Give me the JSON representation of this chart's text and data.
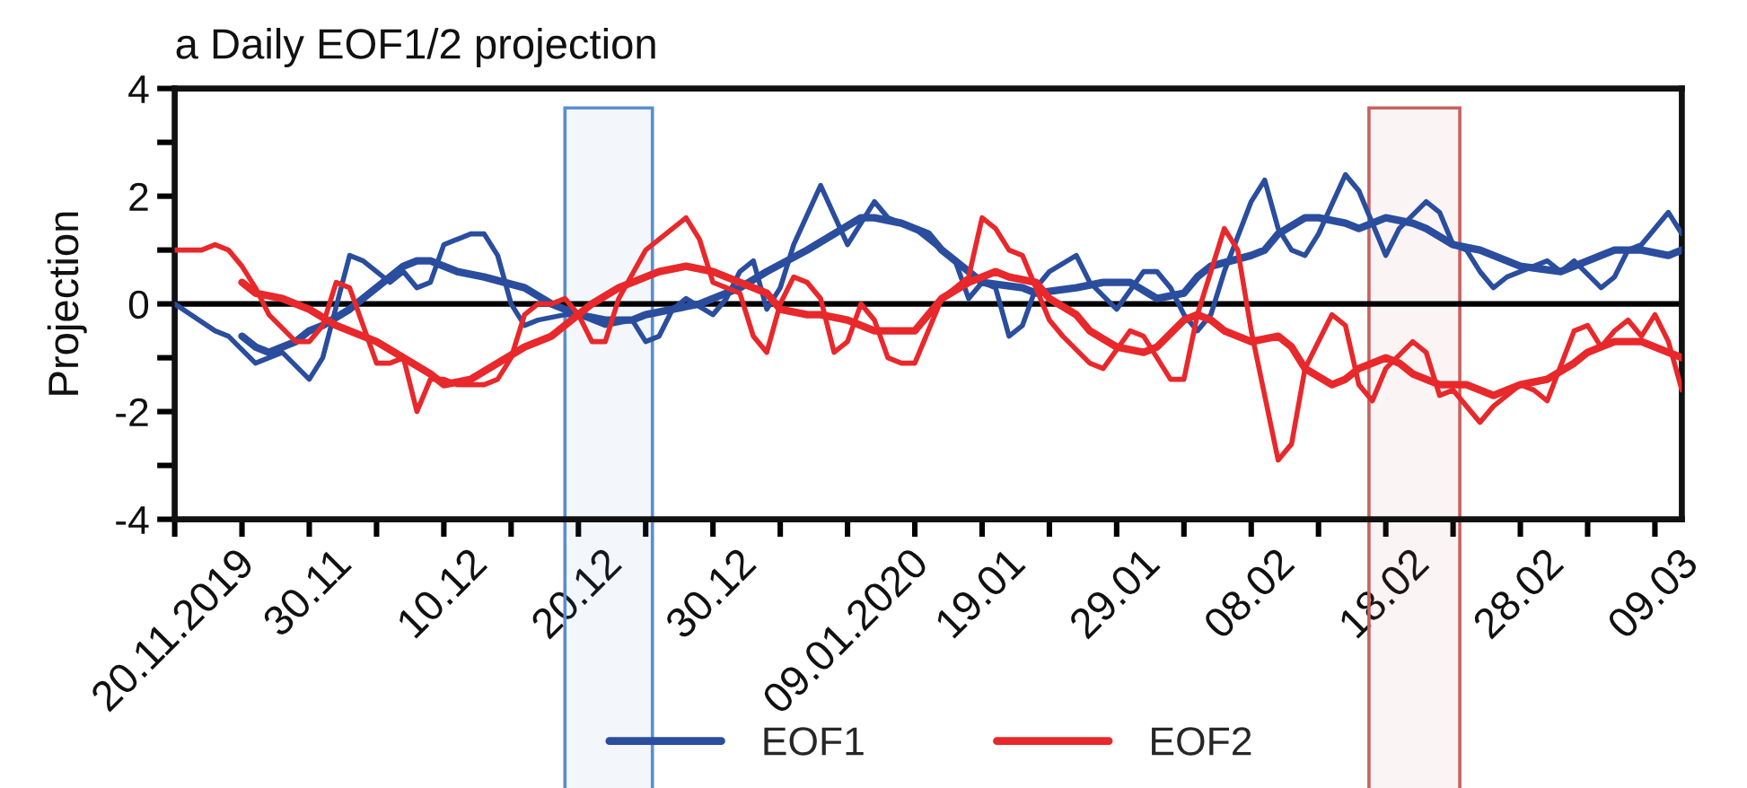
{
  "chart_data": {
    "type": "line",
    "title": "a Daily EOF1/2 projection",
    "ylabel": "Projection",
    "xlim": [
      "2019-11-20",
      "2020-03-11"
    ],
    "ylim": [
      -4,
      4
    ],
    "xticks": [
      {
        "value": "2019-11-20",
        "label": "20.11.2019"
      },
      {
        "value": "2019-11-25",
        "label": null
      },
      {
        "value": "2019-11-30",
        "label": "30.11"
      },
      {
        "value": "2019-12-05",
        "label": null
      },
      {
        "value": "2019-12-10",
        "label": "10.12"
      },
      {
        "value": "2019-12-15",
        "label": null
      },
      {
        "value": "2019-12-20",
        "label": "20.12"
      },
      {
        "value": "2019-12-25",
        "label": null
      },
      {
        "value": "2019-12-30",
        "label": "30.12"
      },
      {
        "value": "2020-01-04",
        "label": null
      },
      {
        "value": "2020-01-09",
        "label": "09.01.2020"
      },
      {
        "value": "2020-01-14",
        "label": null
      },
      {
        "value": "2020-01-19",
        "label": "19.01"
      },
      {
        "value": "2020-01-24",
        "label": null
      },
      {
        "value": "2020-01-29",
        "label": "29.01"
      },
      {
        "value": "2020-02-03",
        "label": null
      },
      {
        "value": "2020-02-08",
        "label": "08.02"
      },
      {
        "value": "2020-02-13",
        "label": null
      },
      {
        "value": "2020-02-18",
        "label": "18.02"
      },
      {
        "value": "2020-02-23",
        "label": null
      },
      {
        "value": "2020-02-28",
        "label": "28.02"
      },
      {
        "value": "2020-03-04",
        "label": null
      },
      {
        "value": "2020-03-09",
        "label": "09.03"
      }
    ],
    "yticks": [
      -4,
      {
        "value": -3,
        "label": null
      },
      -2,
      {
        "value": -1,
        "label": null
      },
      0,
      {
        "value": 1,
        "label": null
      },
      2,
      {
        "value": 3,
        "label": null
      },
      4
    ],
    "legend": "bottom",
    "ref_lines": [
      {
        "axis": "y",
        "value": 0,
        "color": "#000000"
      }
    ],
    "bands": [
      {
        "axis": "x",
        "from": "2019-12-19",
        "to": "2019-12-25T12:00",
        "color": "#5a8fd0"
      },
      {
        "axis": "x",
        "from": "2020-02-16T18:00",
        "to": "2020-02-23T12:00",
        "color": "#c9605f"
      }
    ],
    "series": [
      {
        "color": "#2a4d9e",
        "x": [
          "2019-11-20",
          "2019-11-23",
          "2019-11-24",
          "2019-11-26",
          "2019-11-27",
          "2019-11-28",
          "2019-11-30",
          "2019-12-01",
          "2019-12-03",
          "2019-12-04",
          "2019-12-06",
          "2019-12-07",
          "2019-12-08",
          "2019-12-09",
          "2019-12-10",
          "2019-12-12",
          "2019-12-13",
          "2019-12-14",
          "2019-12-15",
          "2019-12-16",
          "2019-12-17",
          "2019-12-19",
          "2019-12-20",
          "2019-12-22",
          "2019-12-24",
          "2019-12-25",
          "2019-12-26",
          "2019-12-27",
          "2019-12-28",
          "2019-12-30",
          "2019-12-31",
          "2020-01-01",
          "2020-01-02",
          "2020-01-03",
          "2020-01-04",
          "2020-01-05",
          "2020-01-07",
          "2020-01-09",
          "2020-01-11",
          "2020-01-12",
          "2020-01-14",
          "2020-01-15",
          "2020-01-17",
          "2020-01-18",
          "2020-01-19",
          "2020-01-20",
          "2020-01-21",
          "2020-01-22",
          "2020-01-23",
          "2020-01-24",
          "2020-01-26",
          "2020-01-27",
          "2020-01-29",
          "2020-01-31",
          "2020-02-01",
          "2020-02-02",
          "2020-02-03",
          "2020-02-04",
          "2020-02-05",
          "2020-02-06",
          "2020-02-08",
          "2020-02-09",
          "2020-02-10",
          "2020-02-11",
          "2020-02-12",
          "2020-02-13",
          "2020-02-15",
          "2020-02-16",
          "2020-02-17",
          "2020-02-18",
          "2020-02-19",
          "2020-02-21",
          "2020-02-22",
          "2020-02-23",
          "2020-02-24",
          "2020-02-25",
          "2020-02-26",
          "2020-02-27",
          "2020-02-29",
          "2020-03-01",
          "2020-03-02",
          "2020-03-03",
          "2020-03-05",
          "2020-03-06",
          "2020-03-07",
          "2020-03-08",
          "2020-03-09",
          "2020-03-10",
          "2020-03-11"
        ],
        "values": [
          0.0,
          -0.5,
          -0.6,
          -1.1,
          -1.0,
          -0.9,
          -1.4,
          -1.0,
          0.9,
          0.8,
          0.4,
          0.6,
          0.3,
          0.4,
          1.1,
          1.3,
          1.3,
          0.9,
          0.0,
          -0.4,
          -0.3,
          -0.2,
          -0.2,
          -0.4,
          -0.3,
          -0.7,
          -0.6,
          -0.1,
          0.1,
          -0.2,
          0.1,
          0.6,
          0.8,
          -0.1,
          0.3,
          1.1,
          2.2,
          1.1,
          1.9,
          1.6,
          1.4,
          1.2,
          0.8,
          0.1,
          0.4,
          0.3,
          -0.6,
          -0.4,
          0.3,
          0.6,
          0.9,
          0.4,
          -0.1,
          0.6,
          0.6,
          0.3,
          -0.2,
          -0.5,
          -0.2,
          0.6,
          1.9,
          2.3,
          1.4,
          1.0,
          0.9,
          1.3,
          2.4,
          2.1,
          1.5,
          0.9,
          1.4,
          1.9,
          1.7,
          1.1,
          1.0,
          0.6,
          0.3,
          0.5,
          0.7,
          0.8,
          0.6,
          0.8,
          0.3,
          0.5,
          1.0,
          1.1,
          1.4,
          1.7,
          1.3
        ]
      },
      {
        "name": "EOF1",
        "color": "#2a4d9e",
        "x": [
          "2019-11-25",
          "2019-11-26",
          "2019-11-27",
          "2019-11-29",
          "2019-11-30",
          "2019-12-01",
          "2019-12-03",
          "2019-12-05",
          "2019-12-07",
          "2019-12-08",
          "2019-12-09",
          "2019-12-11",
          "2019-12-13",
          "2019-12-16",
          "2019-12-18",
          "2019-12-20",
          "2019-12-22",
          "2019-12-24",
          "2019-12-25",
          "2019-12-27",
          "2019-12-29",
          "2020-01-01",
          "2020-01-03",
          "2020-01-06",
          "2020-01-08",
          "2020-01-10",
          "2020-01-11",
          "2020-01-13",
          "2020-01-15",
          "2020-01-16",
          "2020-01-18",
          "2020-01-19",
          "2020-01-22",
          "2020-01-23",
          "2020-01-26",
          "2020-01-28",
          "2020-01-30",
          "2020-02-01",
          "2020-02-03",
          "2020-02-04",
          "2020-02-05",
          "2020-02-08",
          "2020-02-09",
          "2020-02-10",
          "2020-02-12",
          "2020-02-13",
          "2020-02-15",
          "2020-02-16",
          "2020-02-18",
          "2020-02-20",
          "2020-02-21",
          "2020-02-23",
          "2020-02-25",
          "2020-02-27",
          "2020-02-28",
          "2020-03-02",
          "2020-03-04",
          "2020-03-06",
          "2020-03-08",
          "2020-03-10",
          "2020-03-11"
        ],
        "values": [
          -0.6,
          -0.8,
          -0.9,
          -0.7,
          -0.5,
          -0.4,
          -0.1,
          0.3,
          0.7,
          0.8,
          0.8,
          0.6,
          0.5,
          0.3,
          0.0,
          -0.2,
          -0.3,
          -0.3,
          -0.2,
          -0.1,
          0.0,
          0.3,
          0.6,
          1.0,
          1.3,
          1.6,
          1.6,
          1.5,
          1.3,
          1.0,
          0.6,
          0.4,
          0.3,
          0.2,
          0.3,
          0.4,
          0.4,
          0.1,
          0.2,
          0.5,
          0.7,
          0.9,
          1.0,
          1.3,
          1.6,
          1.6,
          1.5,
          1.4,
          1.6,
          1.5,
          1.4,
          1.1,
          1.0,
          0.8,
          0.7,
          0.6,
          0.8,
          1.0,
          1.0,
          0.9,
          1.0
        ]
      },
      {
        "color": "#e8282b",
        "x": [
          "2019-11-20",
          "2019-11-21",
          "2019-11-22",
          "2019-11-23",
          "2019-11-24",
          "2019-11-25",
          "2019-11-26",
          "2019-11-27",
          "2019-11-29",
          "2019-11-30",
          "2019-12-01",
          "2019-12-02",
          "2019-12-03",
          "2019-12-04",
          "2019-12-05",
          "2019-12-06",
          "2019-12-07",
          "2019-12-08",
          "2019-12-09",
          "2019-12-10",
          "2019-12-11",
          "2019-12-13",
          "2019-12-14",
          "2019-12-15",
          "2019-12-16",
          "2019-12-17",
          "2019-12-18",
          "2019-12-19",
          "2019-12-20",
          "2019-12-21",
          "2019-12-22",
          "2019-12-23",
          "2019-12-25",
          "2019-12-26",
          "2019-12-27",
          "2019-12-28",
          "2019-12-29",
          "2019-12-30",
          "2020-01-01",
          "2020-01-02",
          "2020-01-03",
          "2020-01-04",
          "2020-01-05",
          "2020-01-06",
          "2020-01-07",
          "2020-01-08",
          "2020-01-09",
          "2020-01-10",
          "2020-01-11",
          "2020-01-12",
          "2020-01-13",
          "2020-01-14",
          "2020-01-16",
          "2020-01-18",
          "2020-01-19",
          "2020-01-20",
          "2020-01-21",
          "2020-01-22",
          "2020-01-23",
          "2020-01-24",
          "2020-01-25",
          "2020-01-27",
          "2020-01-28",
          "2020-01-30",
          "2020-01-31",
          "2020-02-02",
          "2020-02-03",
          "2020-02-04",
          "2020-02-05",
          "2020-02-06",
          "2020-02-07",
          "2020-02-08",
          "2020-02-10",
          "2020-02-11",
          "2020-02-12",
          "2020-02-14",
          "2020-02-15",
          "2020-02-16",
          "2020-02-17",
          "2020-02-18",
          "2020-02-20",
          "2020-02-21",
          "2020-02-22",
          "2020-02-23",
          "2020-02-25",
          "2020-02-26",
          "2020-02-28",
          "2020-02-29",
          "2020-03-01",
          "2020-03-03",
          "2020-03-04",
          "2020-03-05",
          "2020-03-06",
          "2020-03-07",
          "2020-03-08",
          "2020-03-09",
          "2020-03-10",
          "2020-03-11"
        ],
        "values": [
          1.0,
          1.0,
          1.0,
          1.1,
          1.0,
          0.7,
          0.3,
          -0.2,
          -0.7,
          -0.7,
          -0.4,
          0.4,
          0.3,
          -0.4,
          -1.1,
          -1.1,
          -1.0,
          -2.0,
          -1.4,
          -1.4,
          -1.5,
          -1.5,
          -1.4,
          -1.0,
          -0.2,
          0.0,
          0.0,
          0.1,
          -0.2,
          -0.7,
          -0.7,
          0.1,
          1.0,
          1.2,
          1.4,
          1.6,
          1.2,
          0.4,
          0.2,
          -0.6,
          -0.9,
          0.0,
          0.5,
          0.4,
          0.1,
          -0.9,
          -0.7,
          0.0,
          -0.3,
          -1.0,
          -1.1,
          -1.1,
          0.1,
          0.5,
          1.6,
          1.4,
          1.0,
          0.9,
          0.3,
          -0.3,
          -0.6,
          -1.1,
          -1.2,
          -0.5,
          -0.6,
          -1.4,
          -1.4,
          -0.2,
          0.6,
          1.4,
          1.0,
          -0.5,
          -2.9,
          -2.6,
          -1.2,
          -0.2,
          -0.4,
          -1.5,
          -1.8,
          -1.2,
          -0.7,
          -0.9,
          -1.7,
          -1.6,
          -2.2,
          -1.9,
          -1.5,
          -1.6,
          -1.8,
          -0.5,
          -0.4,
          -0.8,
          -0.5,
          -0.3,
          -0.6,
          -0.2,
          -0.7,
          -1.6
        ]
      },
      {
        "name": "EOF2",
        "color": "#e8282b",
        "x": [
          "2019-11-25",
          "2019-11-26",
          "2019-11-28",
          "2019-11-30",
          "2019-12-02",
          "2019-12-03",
          "2019-12-05",
          "2019-12-07",
          "2019-12-09",
          "2019-12-10",
          "2019-12-12",
          "2019-12-14",
          "2019-12-16",
          "2019-12-18",
          "2019-12-19",
          "2019-12-21",
          "2019-12-23",
          "2019-12-25",
          "2019-12-26",
          "2019-12-28",
          "2019-12-30",
          "2020-01-01",
          "2020-01-03",
          "2020-01-04",
          "2020-01-06",
          "2020-01-07",
          "2020-01-09",
          "2020-01-11",
          "2020-01-12",
          "2020-01-14",
          "2020-01-15",
          "2020-01-16",
          "2020-01-18",
          "2020-01-20",
          "2020-01-21",
          "2020-01-23",
          "2020-01-24",
          "2020-01-26",
          "2020-01-27",
          "2020-01-29",
          "2020-01-31",
          "2020-02-01",
          "2020-02-03",
          "2020-02-04",
          "2020-02-05",
          "2020-02-06",
          "2020-02-08",
          "2020-02-10",
          "2020-02-11",
          "2020-02-12",
          "2020-02-14",
          "2020-02-15",
          "2020-02-16",
          "2020-02-18",
          "2020-02-19",
          "2020-02-20",
          "2020-02-22",
          "2020-02-24",
          "2020-02-26",
          "2020-02-28",
          "2020-03-01",
          "2020-03-03",
          "2020-03-04",
          "2020-03-06",
          "2020-03-08",
          "2020-03-10",
          "2020-03-11"
        ],
        "values": [
          0.4,
          0.2,
          0.1,
          -0.1,
          -0.4,
          -0.5,
          -0.7,
          -1.0,
          -1.3,
          -1.5,
          -1.4,
          -1.1,
          -0.8,
          -0.6,
          -0.4,
          0.0,
          0.3,
          0.5,
          0.6,
          0.7,
          0.6,
          0.4,
          0.2,
          -0.1,
          -0.2,
          -0.2,
          -0.3,
          -0.5,
          -0.5,
          -0.5,
          -0.2,
          0.1,
          0.4,
          0.6,
          0.5,
          0.4,
          0.1,
          -0.2,
          -0.5,
          -0.8,
          -0.9,
          -0.8,
          -0.3,
          -0.2,
          -0.3,
          -0.5,
          -0.7,
          -0.6,
          -0.8,
          -1.2,
          -1.5,
          -1.4,
          -1.2,
          -1.0,
          -1.1,
          -1.3,
          -1.5,
          -1.5,
          -1.7,
          -1.5,
          -1.4,
          -1.1,
          -0.9,
          -0.7,
          -0.7,
          -0.9,
          -1.0
        ]
      }
    ]
  }
}
